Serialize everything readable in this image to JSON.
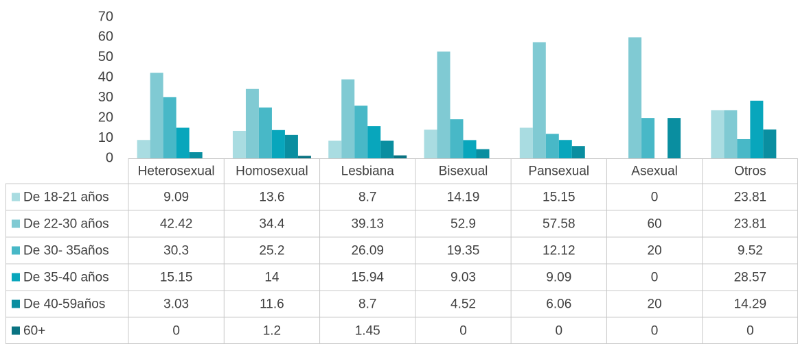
{
  "chart_data": {
    "type": "bar",
    "categories": [
      "Heterosexual",
      "Homosexual",
      "Lesbiana",
      "Bisexual",
      "Pansexual",
      "Asexual",
      "Otros"
    ],
    "series": [
      {
        "name": "De 18-21 años",
        "color": "#a9dce1",
        "values": [
          9.09,
          13.6,
          8.7,
          14.19,
          15.15,
          0,
          23.81
        ]
      },
      {
        "name": "De 22-30 años",
        "color": "#80cad3",
        "values": [
          42.42,
          34.4,
          39.13,
          52.9,
          57.58,
          60,
          23.81
        ]
      },
      {
        "name": "De 30- 35años",
        "color": "#48b8c7",
        "values": [
          30.3,
          25.2,
          26.09,
          19.35,
          12.12,
          20,
          9.52
        ]
      },
      {
        "name": "De 35-40 años",
        "color": "#08a6bc",
        "values": [
          15.15,
          14,
          15.94,
          9.03,
          9.09,
          0,
          28.57
        ]
      },
      {
        "name": "De 40-59años",
        "color": "#0a8ea0",
        "values": [
          3.03,
          11.6,
          8.7,
          4.52,
          6.06,
          20,
          14.29
        ]
      },
      {
        "name": "60+",
        "color": "#0a7382",
        "values": [
          0,
          1.2,
          1.45,
          0,
          0,
          0,
          0
        ]
      }
    ],
    "ylim": [
      0,
      70
    ],
    "yticks": [
      0,
      10,
      20,
      30,
      40,
      50,
      60,
      70
    ],
    "grid": false,
    "data_table": true
  }
}
